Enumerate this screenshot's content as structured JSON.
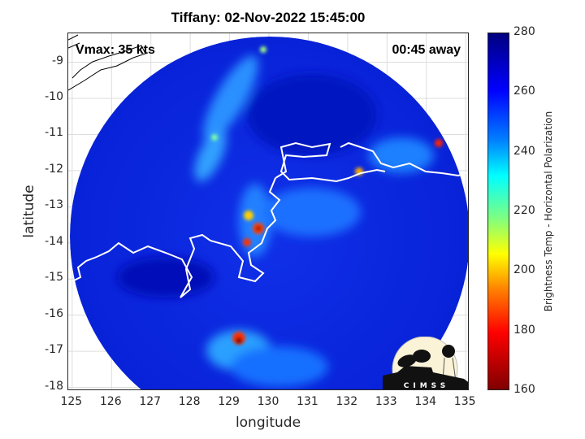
{
  "title": "Tiffany: 02-Nov-2022 15:45:00",
  "annotations": {
    "vmax": "Vmax: 35 kts",
    "away": "00:45 away"
  },
  "chart_data": {
    "type": "heatmap",
    "title": "Tiffany: 02-Nov-2022 15:45:00",
    "xlabel": "longitude",
    "ylabel": "latitude",
    "xlim": [
      124.9,
      135.1
    ],
    "ylim": [
      -18.1,
      -8.2
    ],
    "xticks": [
      "125",
      "126",
      "127",
      "128",
      "129",
      "130",
      "131",
      "132",
      "133",
      "134",
      "135"
    ],
    "yticks": [
      "-9",
      "-10",
      "-11",
      "-12",
      "-13",
      "-14",
      "-15",
      "-16",
      "-17",
      "-18"
    ],
    "grid": true,
    "colorbar": {
      "label": "Brightness Temp - Horizontal Polarization",
      "range": [
        160,
        280
      ],
      "ticks": [
        "280",
        "260",
        "240",
        "220",
        "200",
        "180",
        "160"
      ],
      "colormap": "jet"
    }
  },
  "logo": {
    "text": "CIMSS"
  },
  "colors": {
    "high": "#00007f",
    "low": "#7f0000",
    "coast": "#ffffff"
  }
}
